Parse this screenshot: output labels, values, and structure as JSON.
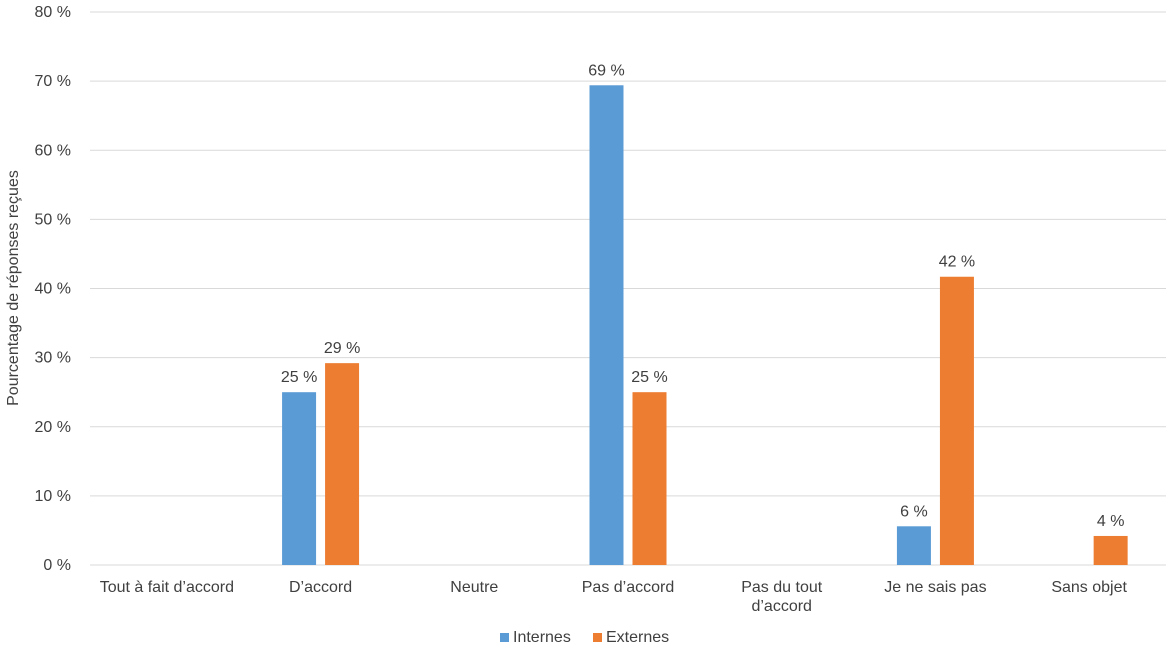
{
  "chart_data": {
    "type": "bar",
    "title": "",
    "xlabel": "",
    "ylabel": "Pourcentage de réponses reçues",
    "ylim": [
      0,
      80
    ],
    "yticks": [
      "0 %",
      "10 %",
      "20 %",
      "30 %",
      "40 %",
      "50 %",
      "60 %",
      "70 %",
      "80 %"
    ],
    "categories": [
      [
        "Tout à fait d’accord"
      ],
      [
        "D’accord"
      ],
      [
        "Neutre"
      ],
      [
        "Pas d’accord"
      ],
      [
        "Pas du tout",
        "d’accord"
      ],
      [
        "Je ne sais pas"
      ],
      [
        "Sans objet"
      ]
    ],
    "series": [
      {
        "name": "Internes",
        "color": "#5b9bd5",
        "values": [
          0,
          25,
          0,
          69.4,
          0,
          5.6,
          0
        ],
        "labels": [
          "",
          "25 %",
          "",
          "69 %",
          "",
          "6 %",
          ""
        ]
      },
      {
        "name": "Externes",
        "color": "#ed7d31",
        "values": [
          0,
          29.2,
          0,
          25,
          0,
          41.7,
          4.2
        ],
        "labels": [
          "",
          "29 %",
          "",
          "25 %",
          "",
          "42 %",
          "4 %"
        ]
      }
    ],
    "grid": true,
    "legend_position": "bottom"
  }
}
